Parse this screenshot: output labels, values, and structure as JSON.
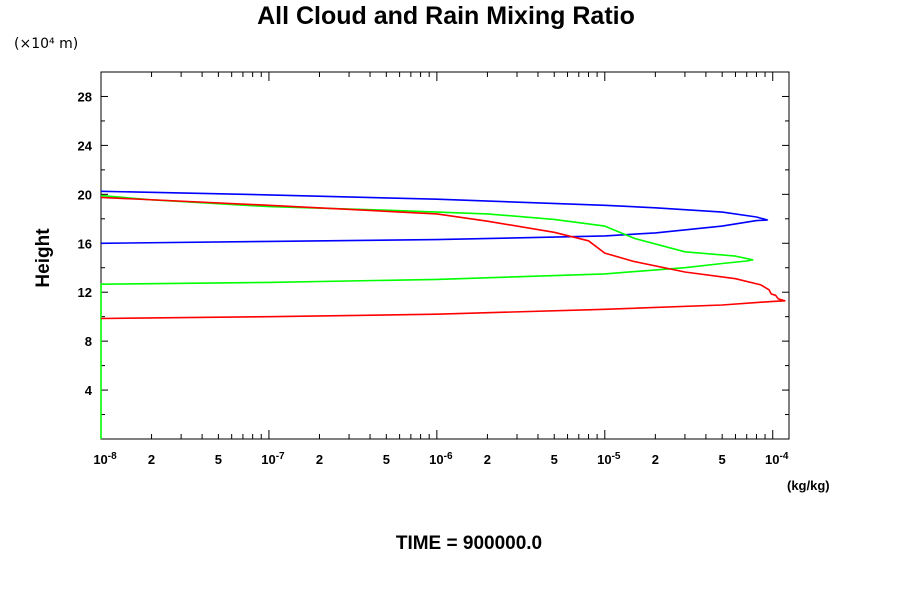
{
  "chart_data": {
    "type": "line",
    "title": "All Cloud and Rain Mixing Ratio",
    "ylabel": "Height",
    "y_scale_label": "(×10⁴ m)",
    "x_unit_label": "(kg/kg)",
    "x_scale": "log",
    "xlim": [
      1e-08,
      0.000125
    ],
    "ylim": [
      0,
      30
    ],
    "yticks": [
      4,
      8,
      12,
      16,
      20,
      24,
      28
    ],
    "ytick_labels": [
      "4",
      "8",
      "12",
      "16",
      "20",
      "24",
      "28"
    ],
    "xticks": [
      {
        "value": 1e-08,
        "label": "10",
        "exp": "-8"
      },
      {
        "value": 2e-08,
        "label": "2"
      },
      {
        "value": 5e-08,
        "label": "5"
      },
      {
        "value": 1e-07,
        "label": "10",
        "exp": "-7"
      },
      {
        "value": 2e-07,
        "label": "2"
      },
      {
        "value": 5e-07,
        "label": "5"
      },
      {
        "value": 1e-06,
        "label": "10",
        "exp": "-6"
      },
      {
        "value": 2e-06,
        "label": "2"
      },
      {
        "value": 5e-06,
        "label": "5"
      },
      {
        "value": 1e-05,
        "label": "10",
        "exp": "-5"
      },
      {
        "value": 2e-05,
        "label": "2"
      },
      {
        "value": 5e-05,
        "label": "5"
      },
      {
        "value": 0.0001,
        "label": "10",
        "exp": "-4"
      }
    ],
    "grid": false,
    "legend": "none",
    "series": [
      {
        "color": "#0000ff",
        "points": [
          [
            1e-08,
            16.0
          ],
          [
            1e-07,
            16.15
          ],
          [
            1e-06,
            16.3
          ],
          [
            5e-06,
            16.5
          ],
          [
            1e-05,
            16.6
          ],
          [
            2e-05,
            16.85
          ],
          [
            5e-05,
            17.4
          ],
          [
            8e-05,
            17.85
          ],
          [
            9.3e-05,
            17.9
          ],
          [
            8e-05,
            18.15
          ],
          [
            5e-05,
            18.55
          ],
          [
            2e-05,
            18.9
          ],
          [
            1e-05,
            19.1
          ],
          [
            1e-06,
            19.6
          ],
          [
            1e-07,
            19.95
          ],
          [
            1e-08,
            20.25
          ]
        ]
      },
      {
        "color": "#00ff00",
        "points": [
          [
            1e-08,
            0.0
          ],
          [
            1e-08,
            12.65
          ],
          [
            1e-07,
            12.8
          ],
          [
            1e-06,
            13.05
          ],
          [
            1e-05,
            13.5
          ],
          [
            3e-05,
            14.0
          ],
          [
            5e-05,
            14.35
          ],
          [
            7e-05,
            14.55
          ],
          [
            7.6e-05,
            14.65
          ],
          [
            6e-05,
            14.95
          ],
          [
            3e-05,
            15.3
          ],
          [
            1.5e-05,
            16.4
          ],
          [
            1e-05,
            17.4
          ],
          [
            5e-06,
            17.95
          ],
          [
            2e-06,
            18.4
          ],
          [
            5e-07,
            18.7
          ],
          [
            1e-07,
            19.0
          ],
          [
            2e-08,
            19.55
          ],
          [
            1e-08,
            19.9
          ]
        ]
      },
      {
        "color": "#ff0000",
        "points": [
          [
            1e-08,
            9.85
          ],
          [
            1e-07,
            10.0
          ],
          [
            1e-06,
            10.2
          ],
          [
            1e-05,
            10.6
          ],
          [
            5e-05,
            10.95
          ],
          [
            0.0001,
            11.25
          ],
          [
            0.000118,
            11.3
          ],
          [
            0.000108,
            11.45
          ],
          [
            0.000104,
            11.75
          ],
          [
            9.8e-05,
            11.85
          ],
          [
            9.5e-05,
            12.2
          ],
          [
            8.5e-05,
            12.6
          ],
          [
            6e-05,
            13.1
          ],
          [
            3e-05,
            13.65
          ],
          [
            1.5e-05,
            14.5
          ],
          [
            1e-05,
            15.2
          ],
          [
            8e-06,
            16.2
          ],
          [
            5e-06,
            16.9
          ],
          [
            2e-06,
            17.8
          ],
          [
            1e-06,
            18.4
          ],
          [
            1e-07,
            19.1
          ],
          [
            1e-08,
            19.75
          ]
        ]
      }
    ]
  },
  "footer": {
    "time_label": "TIME = 900000.0"
  }
}
